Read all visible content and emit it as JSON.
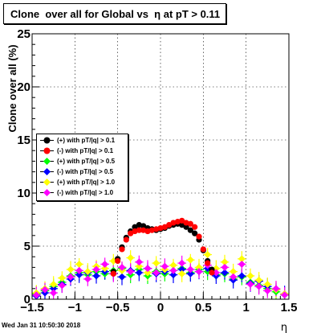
{
  "chart_data": {
    "type": "scatter",
    "title": "Clone  over all for Global vs  η at pT > 0.11",
    "xlabel": "η",
    "ylabel": "Clone  over all (%)",
    "xlim": [
      -1.5,
      1.5
    ],
    "ylim": [
      0,
      25
    ],
    "xticks": [
      "−1.5",
      "−1",
      "−0.5",
      "0",
      "0.5",
      "1",
      "1.5"
    ],
    "yticks": [
      "0",
      "5",
      "10",
      "15",
      "20",
      "25"
    ],
    "grid": true,
    "legend_placement": "middle-left",
    "series": [
      {
        "name": "(+) with pT/|q| > 0.1",
        "color": "#000000",
        "x": [
          -0.55,
          -0.5,
          -0.45,
          -0.4,
          -0.35,
          -0.3,
          -0.25,
          -0.2,
          -0.15,
          -0.1,
          -0.05,
          0.0,
          0.05,
          0.1,
          0.15,
          0.2,
          0.25,
          0.3,
          0.35,
          0.4,
          0.45,
          0.5,
          0.55,
          0.6
        ],
        "y": [
          2.6,
          3.8,
          4.9,
          5.8,
          6.4,
          6.8,
          7.0,
          6.9,
          6.7,
          6.6,
          6.5,
          6.6,
          6.7,
          6.9,
          7.0,
          7.1,
          7.0,
          6.8,
          6.5,
          6.2,
          5.6,
          4.6,
          3.6,
          2.8
        ]
      },
      {
        "name": "(-) with pT/|q| > 0.1",
        "color": "#ff0000",
        "x": [
          -0.55,
          -0.5,
          -0.45,
          -0.4,
          -0.35,
          -0.3,
          -0.25,
          -0.2,
          -0.15,
          -0.1,
          -0.05,
          0.0,
          0.05,
          0.1,
          0.15,
          0.2,
          0.25,
          0.3,
          0.35,
          0.4,
          0.45,
          0.5,
          0.55,
          0.6
        ],
        "y": [
          2.4,
          3.6,
          4.7,
          5.6,
          6.2,
          6.4,
          6.5,
          6.5,
          6.4,
          6.5,
          6.6,
          6.7,
          6.8,
          7.0,
          7.2,
          7.3,
          7.4,
          7.2,
          7.1,
          6.8,
          5.9,
          4.7,
          3.4,
          2.5
        ]
      },
      {
        "name": "(+) with pT/|q| > 0.5",
        "color": "#00ff00",
        "x": [
          -1.45,
          -1.35,
          -1.25,
          -1.15,
          -1.05,
          -0.95,
          -0.85,
          -0.75,
          -0.65,
          -0.55,
          -0.45,
          -0.35,
          -0.25,
          -0.15,
          -0.05,
          0.05,
          0.15,
          0.25,
          0.35,
          0.45,
          0.55,
          0.65,
          0.75,
          0.85,
          0.95,
          1.05,
          1.15,
          1.25,
          1.35,
          1.45
        ],
        "y": [
          0.5,
          0.8,
          1.2,
          1.6,
          2.2,
          2.5,
          2.3,
          2.6,
          2.4,
          2.7,
          2.9,
          2.3,
          2.8,
          2.2,
          2.6,
          2.4,
          2.7,
          2.9,
          2.5,
          2.8,
          2.6,
          2.3,
          2.4,
          1.9,
          2.1,
          1.6,
          1.3,
          1.0,
          0.7,
          0.4
        ]
      },
      {
        "name": "(-) with pT/|q| > 0.5",
        "color": "#0000ff",
        "x": [
          -1.45,
          -1.35,
          -1.25,
          -1.15,
          -1.05,
          -0.95,
          -0.85,
          -0.75,
          -0.65,
          -0.55,
          -0.45,
          -0.35,
          -0.25,
          -0.15,
          -0.05,
          0.05,
          0.15,
          0.25,
          0.35,
          0.45,
          0.55,
          0.65,
          0.75,
          0.85,
          0.95,
          1.05,
          1.15,
          1.25,
          1.35,
          1.45
        ],
        "y": [
          0.3,
          0.6,
          1.0,
          1.4,
          1.9,
          2.3,
          2.5,
          2.2,
          2.6,
          2.4,
          2.1,
          2.7,
          2.5,
          2.9,
          2.4,
          2.6,
          2.3,
          2.8,
          2.4,
          2.6,
          2.9,
          2.2,
          2.5,
          1.8,
          2.2,
          1.5,
          1.7,
          1.2,
          0.9,
          0.5
        ]
      },
      {
        "name": "(+) with pT/|q| > 1.0",
        "color": "#ffff00",
        "x": [
          -1.45,
          -1.35,
          -1.25,
          -1.15,
          -1.05,
          -0.95,
          -0.85,
          -0.75,
          -0.65,
          -0.55,
          -0.45,
          -0.35,
          -0.25,
          -0.15,
          -0.05,
          0.05,
          0.15,
          0.25,
          0.35,
          0.45,
          0.55,
          0.65,
          0.75,
          0.85,
          0.95,
          1.05,
          1.15,
          1.25,
          1.35,
          1.45
        ],
        "y": [
          0.6,
          1.0,
          1.4,
          2.0,
          2.8,
          3.3,
          2.6,
          3.1,
          2.9,
          3.6,
          2.7,
          3.9,
          3.1,
          2.5,
          3.4,
          2.8,
          3.2,
          2.4,
          3.7,
          3.0,
          4.2,
          2.9,
          3.5,
          2.6,
          3.8,
          2.2,
          1.8,
          1.4,
          0.9,
          0.5
        ]
      },
      {
        "name": "(-) with pT/|q| > 1.0",
        "color": "#ff00ff",
        "x": [
          -1.45,
          -1.35,
          -1.25,
          -1.15,
          -1.05,
          -0.95,
          -0.85,
          -0.75,
          -0.65,
          -0.55,
          -0.45,
          -0.35,
          -0.25,
          -0.15,
          -0.05,
          0.05,
          0.15,
          0.25,
          0.35,
          0.45,
          0.55,
          0.65,
          0.75,
          0.85,
          0.95,
          1.05,
          1.15,
          1.25,
          1.35,
          1.45
        ],
        "y": [
          0.4,
          0.9,
          0.6,
          1.3,
          2.1,
          2.7,
          1.9,
          2.8,
          3.3,
          2.4,
          3.0,
          2.6,
          3.5,
          2.9,
          2.5,
          3.1,
          2.7,
          3.4,
          2.8,
          2.6,
          3.2,
          2.5,
          3.0,
          2.1,
          3.3,
          1.4,
          1.2,
          0.8,
          1.0,
          0.4
        ]
      }
    ]
  },
  "footer": {
    "datestamp": "Wed Jan 31 10:50:30 2018"
  }
}
